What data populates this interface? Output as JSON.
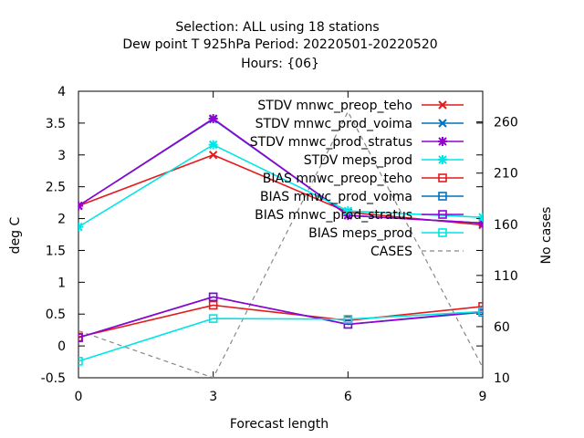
{
  "chart_data": {
    "type": "line",
    "title_lines": [
      "Selection: ALL using    18 stations",
      "Dew point T 925hPa   Period: 20220501-20220520",
      "Hours: {06}"
    ],
    "xlabel": "Forecast length",
    "ylabel": "deg C",
    "y2label": "No cases",
    "x": [
      0,
      3,
      6,
      9
    ],
    "xlim": [
      0,
      9
    ],
    "ylim": [
      -0.5,
      4
    ],
    "y2lim": [
      10,
      290
    ],
    "x_ticks": [
      "0",
      "3",
      "6",
      "9"
    ],
    "y_ticks": [
      "-0.5",
      "0",
      "0.5",
      "1",
      "1.5",
      "2",
      "2.5",
      "3",
      "3.5",
      "4"
    ],
    "y2_ticks": [
      "10",
      "60",
      "110",
      "160",
      "210",
      "260"
    ],
    "grid": false,
    "legend_position": "top-right",
    "series": [
      {
        "name": "STDV mnwc_preop_teho",
        "values": [
          2.2,
          3.0,
          2.1,
          1.9
        ],
        "color": "#e41a1c",
        "marker": "cross"
      },
      {
        "name": "STDV mnwc_prod_voima",
        "values": [
          2.2,
          3.56,
          2.05,
          1.93
        ],
        "color": "#0072bd",
        "marker": "cross"
      },
      {
        "name": "STDV mnwc_prod_stratus",
        "values": [
          2.2,
          3.57,
          2.05,
          1.93
        ],
        "color": "#9400d3",
        "marker": "star"
      },
      {
        "name": "STDV meps_prod",
        "values": [
          1.87,
          3.16,
          2.12,
          2.02
        ],
        "color": "#00e5e5",
        "marker": "star"
      },
      {
        "name": "BIAS mnwc_preop_teho",
        "values": [
          0.14,
          0.64,
          0.4,
          0.62
        ],
        "color": "#e41a1c",
        "marker": "square"
      },
      {
        "name": "BIAS mnwc_prod_voima",
        "values": [
          0.13,
          0.77,
          0.34,
          0.53
        ],
        "color": "#0072bd",
        "marker": "square"
      },
      {
        "name": "BIAS mnwc_prod_stratus",
        "values": [
          0.13,
          0.77,
          0.34,
          0.54
        ],
        "color": "#9400d3",
        "marker": "square"
      },
      {
        "name": "BIAS meps_prod",
        "values": [
          -0.24,
          0.43,
          0.42,
          0.54
        ],
        "color": "#00e5e5",
        "marker": "square"
      },
      {
        "name": "CASES",
        "values": [
          56,
          10,
          270,
          20
        ],
        "color": "#888888",
        "marker": "none",
        "dashed": true,
        "axis": "y2"
      }
    ]
  }
}
